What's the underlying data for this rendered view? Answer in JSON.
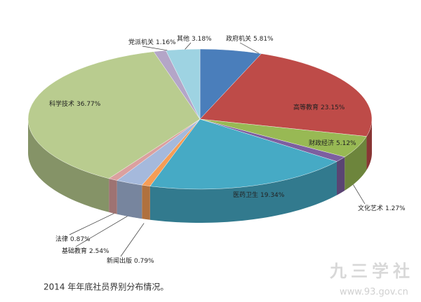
{
  "chart_data": {
    "type": "pie3d",
    "categories": [
      "政府机关",
      "高等教育",
      "财政经济",
      "文化艺术",
      "医药卫生",
      "新闻出版",
      "基础教育",
      "法律",
      "科学技术",
      "党派机关",
      "其他"
    ],
    "values": [
      5.81,
      23.15,
      5.12,
      1.27,
      19.34,
      0.79,
      2.54,
      0.87,
      36.77,
      1.16,
      3.18
    ],
    "value_labels": [
      "5.81%",
      "23.15%",
      "5.12%",
      "1.27%",
      "19.34%",
      "0.79%",
      "2.54%",
      "0.87%",
      "36.77%",
      "1.16%",
      "3.18%"
    ],
    "colors": [
      "#4a7ebb",
      "#be4b48",
      "#98b954",
      "#7d5fa0",
      "#46aac5",
      "#f59d56",
      "#a5b9dc",
      "#dba09f",
      "#b9cc8f",
      "#b4a6c8",
      "#9ed3e2"
    ],
    "caption": "2014 年年底社员界别分布情况。"
  },
  "watermark": {
    "title": "九三学社",
    "url": "www.93.gov.cn"
  }
}
